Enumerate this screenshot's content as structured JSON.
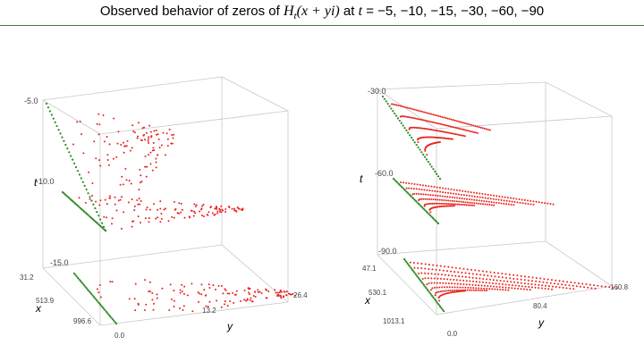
{
  "title_prefix": "Observed behavior of zeros of ",
  "title_math": "H",
  "title_sub": "t",
  "title_args": "(x + yi)",
  "title_mid": " at ",
  "title_t": "t",
  "title_values": " = −5, −10, −15, −30, −60, −90",
  "colors": {
    "zeros": "#e8231d",
    "real_zeros": "#2a8a22",
    "box": "#c8c8c8",
    "rule": "#4e7a2a"
  },
  "chart_data": [
    {
      "type": "scatter",
      "title": "",
      "xlabel": "x",
      "ylabel": "y",
      "zlabel": "t",
      "x_ticks": [
        "31.2",
        "513.9",
        "996.6"
      ],
      "y_ticks": [
        "0.0",
        "13.2",
        "26.4"
      ],
      "t_levels": [
        "-5.0",
        "-10.0",
        "-15.0"
      ],
      "xlim": [
        31.2,
        996.6
      ],
      "ylim": [
        0,
        26.4
      ],
      "series": [
        {
          "t": -5,
          "y_max": 14,
          "pattern": "scattered",
          "points": 110
        },
        {
          "t": -10,
          "y_max": 21,
          "pattern": "scattered",
          "points": 120
        },
        {
          "t": -15,
          "y_max": 26.4,
          "pattern": "scattered",
          "points": 130
        }
      ]
    },
    {
      "type": "scatter",
      "title": "",
      "xlabel": "x",
      "ylabel": "y",
      "zlabel": "t",
      "x_ticks": [
        "47.1",
        "530.1",
        "1013.1"
      ],
      "y_ticks": [
        "0.0",
        "80.4",
        "160.8"
      ],
      "t_levels": [
        "-30.0",
        "-60.0",
        "-90.0"
      ],
      "xlim": [
        47.1,
        1013.1
      ],
      "ylim": [
        0,
        160.8
      ],
      "series": [
        {
          "t": -30,
          "y_max": 60,
          "pattern": "curves",
          "curves": 5
        },
        {
          "t": -60,
          "y_max": 110,
          "pattern": "curves",
          "curves": 6
        },
        {
          "t": -90,
          "y_max": 160.8,
          "pattern": "curves",
          "curves": 8
        }
      ]
    }
  ]
}
